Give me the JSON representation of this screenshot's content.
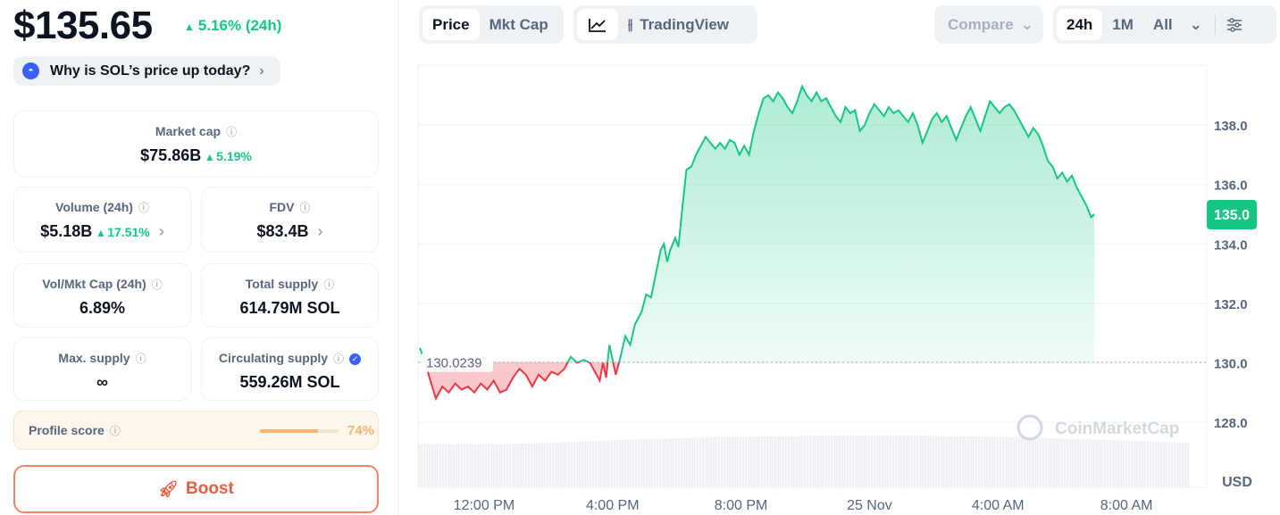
{
  "price": "$135.65",
  "price_change": "5.16% (24h)",
  "why_link": "Why is SOL’s price up today?",
  "stats": {
    "market_cap": {
      "label": "Market cap",
      "value": "$75.86B",
      "change": "5.19%"
    },
    "volume": {
      "label": "Volume (24h)",
      "value": "$5.18B",
      "change": "17.51%"
    },
    "fdv": {
      "label": "FDV",
      "value": "$83.4B"
    },
    "vol_mkt_cap": {
      "label": "Vol/Mkt Cap (24h)",
      "value": "6.89%"
    },
    "total_supply": {
      "label": "Total supply",
      "value": "614.79M SOL"
    },
    "max_supply": {
      "label": "Max. supply",
      "value": "∞"
    },
    "circulating_supply": {
      "label": "Circulating supply",
      "value": "559.26M SOL"
    }
  },
  "profile_score": {
    "label": "Profile score",
    "value": "74%",
    "fraction": 0.74
  },
  "boost_label": "Boost",
  "toolbar": {
    "price_tab": "Price",
    "mktcap_tab": "Mkt Cap",
    "tradingview_label": "TradingView",
    "compare_label": "Compare",
    "range_24h": "24h",
    "range_1m": "1M",
    "range_all": "All"
  },
  "colors": {
    "up": "#16c784",
    "down": "#ea3943",
    "accent": "#3861fb",
    "boost": "#ea5d44"
  },
  "chart_data": {
    "type": "area",
    "baseline_label": "130.0239",
    "baseline": 130.0239,
    "current_label": "135.0",
    "currency_label": "USD",
    "watermark": "CoinMarketCap",
    "y_ticks": [
      "128.0",
      "130.0",
      "132.0",
      "134.0",
      "136.0",
      "138.0"
    ],
    "ylim": [
      126.0,
      140.0
    ],
    "x_ticks": [
      "12:00 PM",
      "4:00 PM",
      "8:00 PM",
      "25 Nov",
      "4:00 AM",
      "8:00 AM"
    ],
    "x_tick_hours": [
      2,
      6,
      10,
      14,
      18,
      22
    ],
    "x_hours_span": [
      0,
      24.5
    ],
    "series": [
      {
        "points": [
          [
            0.0,
            130.5
          ],
          [
            0.15,
            130.1
          ],
          [
            0.3,
            129.5
          ],
          [
            0.5,
            128.8
          ],
          [
            0.7,
            129.2
          ],
          [
            0.9,
            129.0
          ],
          [
            1.1,
            129.3
          ],
          [
            1.3,
            129.1
          ],
          [
            1.5,
            129.2
          ],
          [
            1.7,
            129.0
          ],
          [
            1.9,
            129.3
          ],
          [
            2.1,
            129.1
          ],
          [
            2.3,
            129.4
          ],
          [
            2.5,
            129.0
          ],
          [
            2.7,
            129.1
          ],
          [
            2.9,
            129.5
          ],
          [
            3.1,
            129.8
          ],
          [
            3.3,
            129.6
          ],
          [
            3.5,
            129.2
          ],
          [
            3.7,
            129.6
          ],
          [
            3.9,
            129.4
          ],
          [
            4.1,
            129.7
          ],
          [
            4.3,
            129.6
          ],
          [
            4.5,
            129.8
          ],
          [
            4.7,
            130.2
          ],
          [
            4.9,
            130.0
          ],
          [
            5.1,
            130.1
          ],
          [
            5.3,
            130.0
          ],
          [
            5.5,
            129.6
          ],
          [
            5.6,
            129.4
          ],
          [
            5.7,
            130.0
          ],
          [
            5.8,
            129.5
          ],
          [
            5.9,
            130.6
          ],
          [
            6.0,
            130.1
          ],
          [
            6.1,
            129.6
          ],
          [
            6.25,
            130.2
          ],
          [
            6.4,
            130.9
          ],
          [
            6.55,
            130.6
          ],
          [
            6.7,
            131.3
          ],
          [
            6.9,
            131.7
          ],
          [
            7.05,
            132.3
          ],
          [
            7.2,
            132.2
          ],
          [
            7.35,
            133.0
          ],
          [
            7.5,
            133.8
          ],
          [
            7.6,
            134.0
          ],
          [
            7.7,
            133.4
          ],
          [
            7.8,
            133.8
          ],
          [
            7.95,
            134.2
          ],
          [
            8.05,
            133.9
          ],
          [
            8.2,
            135.5
          ],
          [
            8.3,
            136.5
          ],
          [
            8.45,
            136.6
          ],
          [
            8.6,
            137.0
          ],
          [
            8.75,
            137.3
          ],
          [
            8.9,
            137.6
          ],
          [
            9.05,
            137.4
          ],
          [
            9.2,
            137.2
          ],
          [
            9.35,
            137.4
          ],
          [
            9.5,
            137.2
          ],
          [
            9.65,
            137.5
          ],
          [
            9.8,
            137.4
          ],
          [
            9.95,
            137.0
          ],
          [
            10.1,
            137.3
          ],
          [
            10.25,
            137.0
          ],
          [
            10.4,
            137.8
          ],
          [
            10.55,
            138.4
          ],
          [
            10.7,
            138.9
          ],
          [
            10.85,
            139.0
          ],
          [
            11.0,
            138.8
          ],
          [
            11.15,
            139.1
          ],
          [
            11.3,
            138.9
          ],
          [
            11.45,
            138.6
          ],
          [
            11.6,
            138.4
          ],
          [
            11.75,
            138.8
          ],
          [
            11.9,
            139.3
          ],
          [
            12.05,
            139.0
          ],
          [
            12.2,
            138.8
          ],
          [
            12.35,
            139.1
          ],
          [
            12.5,
            138.8
          ],
          [
            12.65,
            138.9
          ],
          [
            12.8,
            138.6
          ],
          [
            12.95,
            138.3
          ],
          [
            13.1,
            138.1
          ],
          [
            13.25,
            138.6
          ],
          [
            13.4,
            138.4
          ],
          [
            13.55,
            138.5
          ],
          [
            13.7,
            137.8
          ],
          [
            13.85,
            138.0
          ],
          [
            14.0,
            138.4
          ],
          [
            14.15,
            138.7
          ],
          [
            14.3,
            138.5
          ],
          [
            14.45,
            138.3
          ],
          [
            14.6,
            138.6
          ],
          [
            14.75,
            138.4
          ],
          [
            14.9,
            138.5
          ],
          [
            15.05,
            138.3
          ],
          [
            15.2,
            138.1
          ],
          [
            15.35,
            138.4
          ],
          [
            15.5,
            138.0
          ],
          [
            15.65,
            137.4
          ],
          [
            15.8,
            137.8
          ],
          [
            15.95,
            138.2
          ],
          [
            16.1,
            138.4
          ],
          [
            16.25,
            138.1
          ],
          [
            16.4,
            138.3
          ],
          [
            16.55,
            137.9
          ],
          [
            16.7,
            137.5
          ],
          [
            16.85,
            137.9
          ],
          [
            17.0,
            138.3
          ],
          [
            17.15,
            138.6
          ],
          [
            17.3,
            138.2
          ],
          [
            17.45,
            137.8
          ],
          [
            17.6,
            138.3
          ],
          [
            17.75,
            138.8
          ],
          [
            17.9,
            138.6
          ],
          [
            18.05,
            138.4
          ],
          [
            18.2,
            138.6
          ],
          [
            18.35,
            138.7
          ],
          [
            18.5,
            138.5
          ],
          [
            18.65,
            138.2
          ],
          [
            18.8,
            137.9
          ],
          [
            18.95,
            137.6
          ],
          [
            19.1,
            137.9
          ],
          [
            19.25,
            137.7
          ],
          [
            19.4,
            137.3
          ],
          [
            19.55,
            136.8
          ],
          [
            19.7,
            136.6
          ],
          [
            19.85,
            136.2
          ],
          [
            20.0,
            136.4
          ],
          [
            20.15,
            136.1
          ],
          [
            20.3,
            136.3
          ],
          [
            20.45,
            135.9
          ],
          [
            20.6,
            135.6
          ],
          [
            20.75,
            135.3
          ],
          [
            20.9,
            134.9
          ],
          [
            21.0,
            135.0
          ]
        ]
      }
    ]
  }
}
